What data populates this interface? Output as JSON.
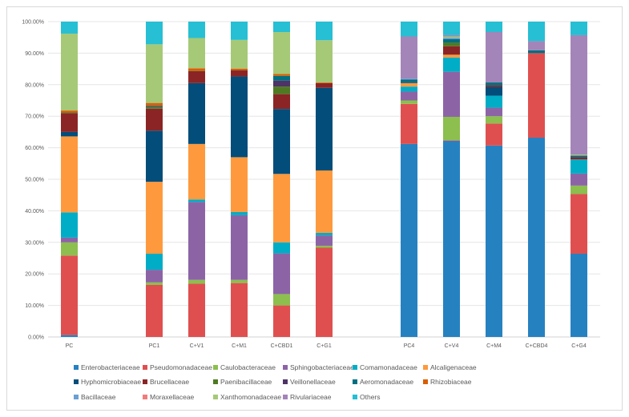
{
  "chart_data": {
    "type": "bar",
    "stacked": true,
    "title": "",
    "xlabel": "",
    "ylabel": "",
    "ylim": [
      0,
      100
    ],
    "y_tick_format": "percent_2dp",
    "y_ticks": [
      "0.00%",
      "10.00%",
      "20.00%",
      "30.00%",
      "40.00%",
      "50.00%",
      "60.00%",
      "70.00%",
      "80.00%",
      "90.00%",
      "100.00%"
    ],
    "grid": true,
    "legend_placement": "bottom",
    "categories": [
      "PC",
      "",
      "PC1",
      "C+V1",
      "C+M1",
      "C+CBD1",
      "C+G1",
      "",
      "PC4",
      "C+V4",
      "C+M4",
      "C+CBD4",
      "C+G4"
    ],
    "series": [
      {
        "name": "Enterobacteriaceae",
        "color": "#2681c1",
        "values": [
          0.6,
          null,
          0,
          0,
          0,
          0,
          0,
          null,
          61.2,
          62.2,
          60.7,
          63.2,
          26.4
        ]
      },
      {
        "name": "Pseudomonadaceae",
        "color": "#e04f4f",
        "values": [
          25.2,
          null,
          16.5,
          16.9,
          17.1,
          10,
          28.3,
          null,
          12.7,
          0.2,
          7,
          26.8,
          18.9
        ]
      },
      {
        "name": "Caulobacteraceae",
        "color": "#8cbf4e",
        "values": [
          4.2,
          null,
          0.8,
          1.2,
          1,
          3.6,
          0.6,
          null,
          1.1,
          7.4,
          2.3,
          0,
          2.7
        ]
      },
      {
        "name": "Sphingobacteriaceae",
        "color": "#8c64a6",
        "values": [
          1.5,
          null,
          4,
          24.7,
          20.5,
          12.9,
          3.3,
          null,
          2.8,
          14.3,
          2.7,
          0,
          3.8
        ]
      },
      {
        "name": "Comamonadaceae",
        "color": "#00adc6",
        "values": [
          8,
          null,
          5.1,
          0.8,
          1,
          3.5,
          0.8,
          null,
          1.6,
          4.5,
          3.8,
          0,
          4.5
        ]
      },
      {
        "name": "Alcaligenaceae",
        "color": "#ff993d",
        "values": [
          24.1,
          null,
          22.8,
          17.6,
          17.4,
          21.7,
          19.8,
          null,
          1.1,
          0.9,
          0,
          0,
          0
        ]
      },
      {
        "name": "Hyphomicrobiaceae",
        "color": "#024d7a",
        "values": [
          1.4,
          null,
          16.2,
          19.3,
          25.6,
          20.6,
          26.2,
          null,
          0.3,
          0,
          2.8,
          0,
          0
        ]
      },
      {
        "name": "Brucellaceae",
        "color": "#8b2525",
        "values": [
          6,
          null,
          7,
          3.8,
          2,
          4.7,
          1.5,
          null,
          0,
          2.7,
          0.5,
          0,
          0.7
        ]
      },
      {
        "name": "Paenibacillaceae",
        "color": "#4f7a22",
        "values": [
          0.2,
          null,
          0.6,
          0.1,
          0,
          2.4,
          0,
          null,
          0,
          1.1,
          0,
          0,
          0
        ]
      },
      {
        "name": "Veillonellaceae",
        "color": "#4e3366",
        "values": [
          0,
          null,
          0.3,
          0,
          0,
          1.9,
          0,
          null,
          0,
          0,
          0,
          0,
          0
        ]
      },
      {
        "name": "Aeromonadaceae",
        "color": "#006f80",
        "values": [
          0,
          null,
          0.1,
          0,
          0,
          1.5,
          0,
          null,
          0.8,
          1.2,
          0.9,
          0.9,
          0.5
        ]
      },
      {
        "name": "Rhizobiaceae",
        "color": "#d95e00",
        "values": [
          0.6,
          null,
          0.8,
          0.8,
          0.5,
          0.6,
          0.2,
          null,
          0,
          0,
          0,
          0,
          0
        ]
      },
      {
        "name": "Bacillaceae",
        "color": "#6a9fd4",
        "values": [
          0,
          null,
          0,
          0,
          0,
          0,
          0,
          null,
          0.3,
          0.4,
          0,
          0,
          0
        ]
      },
      {
        "name": "Moraxellaceae",
        "color": "#f07d7d",
        "values": [
          0,
          null,
          0,
          0,
          0,
          0,
          0,
          null,
          0,
          0,
          0,
          0,
          0
        ]
      },
      {
        "name": "Xanthomonadaceae",
        "color": "#a6c977",
        "values": [
          24.4,
          null,
          18.6,
          9.6,
          9.1,
          13.3,
          13.4,
          null,
          0,
          0.4,
          0,
          0,
          0.3
        ]
      },
      {
        "name": "Rivulariaceae",
        "color": "#a385b9",
        "values": [
          0,
          null,
          0,
          0,
          0,
          0,
          0,
          null,
          13.4,
          0.4,
          16,
          2.9,
          37.9
        ]
      },
      {
        "name": "Others",
        "color": "#26bfd4",
        "values": [
          3.8,
          null,
          7.2,
          5.2,
          5.8,
          3.3,
          5.9,
          null,
          4.7,
          4.3,
          3.3,
          6.2,
          4.3
        ]
      }
    ]
  }
}
